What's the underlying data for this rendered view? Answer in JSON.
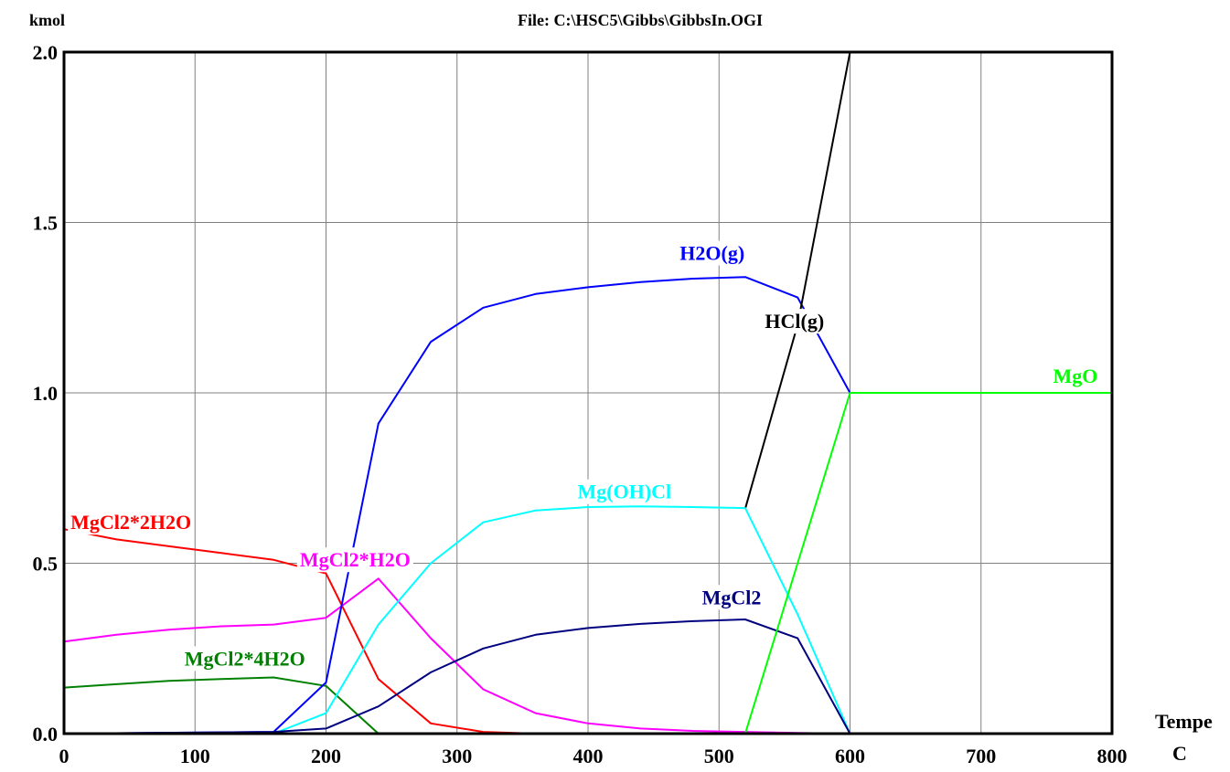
{
  "header": {
    "unit": "kmol",
    "file": "File: C:\\HSC5\\Gibbs\\GibbsIn.OGI"
  },
  "chart_data": {
    "type": "line",
    "title": "",
    "xlabel": "Tempe",
    "xunit": "C",
    "ylabel": "kmol",
    "xlim": [
      0,
      800
    ],
    "ylim": [
      0,
      2.0
    ],
    "xticks": [
      "0",
      "100",
      "200",
      "300",
      "400",
      "500",
      "600",
      "700",
      "800"
    ],
    "yticks": [
      "0.0",
      "0.5",
      "1.0",
      "1.5",
      "2.0"
    ],
    "grid": true,
    "series": [
      {
        "name": "MgCl2*2H2O",
        "color": "#ff0000",
        "points": [
          [
            0,
            0.6
          ],
          [
            40,
            0.57
          ],
          [
            80,
            0.55
          ],
          [
            120,
            0.53
          ],
          [
            160,
            0.51
          ],
          [
            200,
            0.47
          ],
          [
            240,
            0.16
          ],
          [
            280,
            0.03
          ],
          [
            320,
            0.005
          ],
          [
            360,
            0
          ],
          [
            800,
            0
          ]
        ]
      },
      {
        "name": "MgCl2*H2O",
        "color": "#ff00ff",
        "points": [
          [
            0,
            0.27
          ],
          [
            40,
            0.29
          ],
          [
            80,
            0.305
          ],
          [
            120,
            0.315
          ],
          [
            160,
            0.32
          ],
          [
            200,
            0.34
          ],
          [
            240,
            0.455
          ],
          [
            280,
            0.28
          ],
          [
            320,
            0.13
          ],
          [
            360,
            0.06
          ],
          [
            400,
            0.03
          ],
          [
            440,
            0.015
          ],
          [
            480,
            0.008
          ],
          [
            520,
            0.005
          ],
          [
            560,
            0.002
          ],
          [
            600,
            0
          ],
          [
            800,
            0
          ]
        ]
      },
      {
        "name": "MgCl2*4H2O",
        "color": "#008000",
        "points": [
          [
            0,
            0.135
          ],
          [
            40,
            0.145
          ],
          [
            80,
            0.155
          ],
          [
            120,
            0.16
          ],
          [
            160,
            0.165
          ],
          [
            200,
            0.14
          ],
          [
            240,
            0
          ],
          [
            800,
            0
          ]
        ]
      },
      {
        "name": "H2O(g)",
        "color": "#0000ff",
        "points": [
          [
            0,
            0
          ],
          [
            160,
            0.005
          ],
          [
            200,
            0.15
          ],
          [
            240,
            0.91
          ],
          [
            280,
            1.15
          ],
          [
            320,
            1.25
          ],
          [
            360,
            1.29
          ],
          [
            400,
            1.31
          ],
          [
            440,
            1.325
          ],
          [
            480,
            1.335
          ],
          [
            520,
            1.34
          ],
          [
            560,
            1.28
          ],
          [
            600,
            1.0
          ]
        ]
      },
      {
        "name": "HCl(g)",
        "color": "#000000",
        "points": [
          [
            520,
            0.66
          ],
          [
            560,
            1.2
          ],
          [
            600,
            2.0
          ]
        ]
      },
      {
        "name": "Mg(OH)Cl",
        "color": "#00ffff",
        "points": [
          [
            0,
            0
          ],
          [
            160,
            0
          ],
          [
            200,
            0.06
          ],
          [
            240,
            0.32
          ],
          [
            280,
            0.5
          ],
          [
            320,
            0.62
          ],
          [
            360,
            0.655
          ],
          [
            400,
            0.665
          ],
          [
            440,
            0.667
          ],
          [
            480,
            0.665
          ],
          [
            520,
            0.662
          ],
          [
            560,
            0.35
          ],
          [
            600,
            0
          ]
        ]
      },
      {
        "name": "MgCl2",
        "color": "#000080",
        "points": [
          [
            0,
            0
          ],
          [
            160,
            0.005
          ],
          [
            200,
            0.015
          ],
          [
            240,
            0.08
          ],
          [
            280,
            0.18
          ],
          [
            320,
            0.25
          ],
          [
            360,
            0.29
          ],
          [
            400,
            0.31
          ],
          [
            440,
            0.322
          ],
          [
            480,
            0.33
          ],
          [
            520,
            0.335
          ],
          [
            560,
            0.28
          ],
          [
            600,
            0
          ]
        ]
      },
      {
        "name": "MgO",
        "color": "#00ff00",
        "points": [
          [
            0,
            0
          ],
          [
            520,
            0
          ],
          [
            560,
            0.5
          ],
          [
            600,
            1.0
          ],
          [
            800,
            1.0
          ]
        ]
      }
    ],
    "labels": [
      {
        "text": "H2O(g)",
        "color": "#0000ff",
        "x": 470,
        "y": 1.39
      },
      {
        "text": "HCl(g)",
        "color": "#000000",
        "x": 535,
        "y": 1.19
      },
      {
        "text": "MgO",
        "color": "#00ff00",
        "x": 755,
        "y": 1.03
      },
      {
        "text": "Mg(OH)Cl",
        "color": "#00ffff",
        "x": 392,
        "y": 0.69
      },
      {
        "text": "MgCl2*2H2O",
        "color": "#ff0000",
        "x": 5,
        "y": 0.6
      },
      {
        "text": "MgCl2*H2O",
        "color": "#ff00ff",
        "x": 180,
        "y": 0.49
      },
      {
        "text": "MgCl2",
        "color": "#000080",
        "x": 487,
        "y": 0.38
      },
      {
        "text": "MgCl2*4H2O",
        "color": "#008000",
        "x": 92,
        "y": 0.2
      }
    ]
  }
}
